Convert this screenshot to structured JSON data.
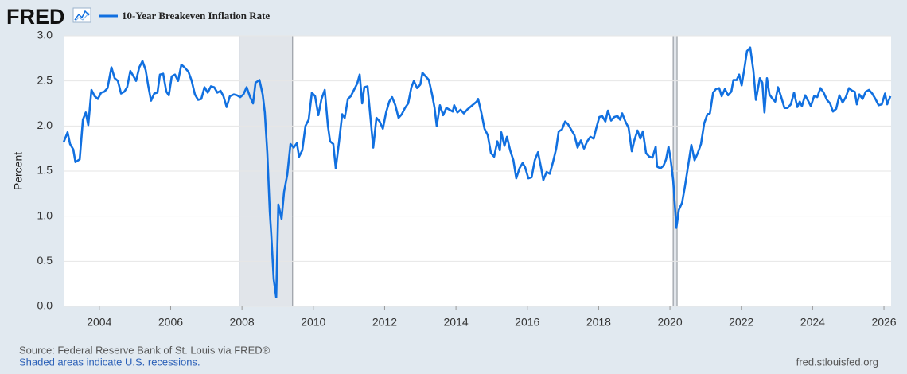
{
  "logo": "FRED",
  "site": "fred.stlouisfed.org",
  "chart_data": {
    "type": "line",
    "y_label": "Percent",
    "source": "Source: Federal Reserve Bank of St. Louis via FRED®",
    "note": "Shaded areas indicate U.S. recessions.",
    "xlim": [
      2003,
      2026.2
    ],
    "xticks": [
      2004,
      2006,
      2008,
      2010,
      2012,
      2014,
      2016,
      2018,
      2020,
      2022,
      2024,
      2026
    ],
    "ylim": [
      0,
      3
    ],
    "yticks": [
      {
        "value": 0,
        "label": "0.0"
      },
      0.5,
      {
        "value": 1,
        "label": "1.0"
      },
      1.5,
      {
        "value": 2,
        "label": "2.0"
      },
      2.5,
      {
        "value": 3,
        "label": "3.0"
      }
    ],
    "grid": true,
    "recessions": [
      [
        2007.92,
        2009.42
      ],
      [
        2020.09,
        2020.2
      ]
    ],
    "x": [
      2003.0,
      2003.11,
      2003.18,
      2003.27,
      2003.33,
      2003.45,
      2003.54,
      2003.62,
      2003.69,
      2003.78,
      2003.87,
      2003.96,
      2004.05,
      2004.14,
      2004.23,
      2004.34,
      2004.43,
      2004.52,
      2004.61,
      2004.7,
      2004.78,
      2004.87,
      2004.96,
      2005.03,
      2005.12,
      2005.21,
      2005.3,
      2005.37,
      2005.45,
      2005.54,
      2005.63,
      2005.7,
      2005.79,
      2005.88,
      2005.95,
      2006.03,
      2006.12,
      2006.21,
      2006.3,
      2006.39,
      2006.5,
      2006.59,
      2006.68,
      2006.77,
      2006.86,
      2006.95,
      2007.04,
      2007.13,
      2007.22,
      2007.31,
      2007.4,
      2007.48,
      2007.57,
      2007.66,
      2007.77,
      2007.86,
      2007.95,
      2008.04,
      2008.13,
      2008.22,
      2008.31,
      2008.38,
      2008.49,
      2008.58,
      2008.64,
      2008.71,
      2008.78,
      2008.82,
      2008.89,
      2008.96,
      2009.02,
      2009.11,
      2009.18,
      2009.27,
      2009.36,
      2009.45,
      2009.54,
      2009.6,
      2009.69,
      2009.78,
      2009.87,
      2009.96,
      2010.05,
      2010.14,
      2010.23,
      2010.32,
      2010.41,
      2010.47,
      2010.56,
      2010.63,
      2010.72,
      2010.81,
      2010.88,
      2010.97,
      2011.05,
      2011.14,
      2011.23,
      2011.3,
      2011.37,
      2011.43,
      2011.52,
      2011.61,
      2011.68,
      2011.77,
      2011.86,
      2011.95,
      2012.04,
      2012.13,
      2012.21,
      2012.3,
      2012.39,
      2012.48,
      2012.57,
      2012.66,
      2012.75,
      2012.82,
      2012.91,
      2013.0,
      2013.06,
      2013.15,
      2013.24,
      2013.33,
      2013.4,
      2013.46,
      2013.55,
      2013.64,
      2013.73,
      2013.82,
      2013.91,
      2013.95,
      2014.04,
      2014.13,
      2014.22,
      2014.31,
      2014.4,
      2014.49,
      2014.58,
      2014.62,
      2014.71,
      2014.8,
      2014.89,
      2014.98,
      2015.07,
      2015.16,
      2015.23,
      2015.27,
      2015.36,
      2015.43,
      2015.52,
      2015.61,
      2015.69,
      2015.78,
      2015.87,
      2015.94,
      2016.03,
      2016.12,
      2016.21,
      2016.3,
      2016.39,
      2016.45,
      2016.54,
      2016.63,
      2016.72,
      2016.81,
      2016.88,
      2016.97,
      2017.06,
      2017.14,
      2017.23,
      2017.32,
      2017.41,
      2017.5,
      2017.59,
      2017.68,
      2017.77,
      2017.86,
      2017.93,
      2018.02,
      2018.1,
      2018.19,
      2018.26,
      2018.35,
      2018.44,
      2018.53,
      2018.6,
      2018.66,
      2018.75,
      2018.84,
      2018.93,
      2019.0,
      2019.09,
      2019.17,
      2019.24,
      2019.33,
      2019.42,
      2019.51,
      2019.6,
      2019.64,
      2019.73,
      2019.82,
      2019.89,
      2019.96,
      2020.02,
      2020.09,
      2020.18,
      2020.25,
      2020.34,
      2020.42,
      2020.51,
      2020.6,
      2020.69,
      2020.78,
      2020.87,
      2020.96,
      2021.05,
      2021.12,
      2021.21,
      2021.29,
      2021.38,
      2021.45,
      2021.54,
      2021.63,
      2021.72,
      2021.78,
      2021.87,
      2021.94,
      2022.01,
      2022.08,
      2022.16,
      2022.25,
      2022.34,
      2022.41,
      2022.52,
      2022.59,
      2022.65,
      2022.72,
      2022.79,
      2022.86,
      2022.95,
      2023.03,
      2023.12,
      2023.21,
      2023.3,
      2023.39,
      2023.48,
      2023.57,
      2023.64,
      2023.7,
      2023.79,
      2023.86,
      2023.95,
      2024.04,
      2024.13,
      2024.22,
      2024.31,
      2024.4,
      2024.49,
      2024.57,
      2024.66,
      2024.75,
      2024.84,
      2024.93,
      2025.02,
      2025.11,
      2025.18,
      2025.24,
      2025.31,
      2025.4,
      2025.49,
      2025.58,
      2025.67,
      2025.76,
      2025.85,
      2025.94,
      2026.03,
      2026.09,
      2026.18
    ],
    "series": [
      {
        "name": "10-Year Breakeven Inflation Rate",
        "color": "#1170e0",
        "values": [
          1.82,
          1.93,
          1.8,
          1.74,
          1.6,
          1.63,
          2.07,
          2.15,
          2.01,
          2.4,
          2.33,
          2.3,
          2.37,
          2.38,
          2.42,
          2.65,
          2.53,
          2.5,
          2.36,
          2.38,
          2.43,
          2.61,
          2.55,
          2.5,
          2.65,
          2.72,
          2.62,
          2.45,
          2.28,
          2.36,
          2.37,
          2.57,
          2.58,
          2.38,
          2.34,
          2.55,
          2.57,
          2.5,
          2.68,
          2.65,
          2.6,
          2.5,
          2.35,
          2.29,
          2.3,
          2.43,
          2.37,
          2.44,
          2.43,
          2.37,
          2.39,
          2.33,
          2.21,
          2.33,
          2.35,
          2.34,
          2.32,
          2.35,
          2.43,
          2.33,
          2.25,
          2.48,
          2.51,
          2.35,
          2.15,
          1.7,
          1.05,
          0.8,
          0.3,
          0.1,
          1.13,
          0.97,
          1.27,
          1.46,
          1.8,
          1.76,
          1.81,
          1.66,
          1.73,
          2.0,
          2.07,
          2.37,
          2.33,
          2.12,
          2.3,
          2.4,
          2.0,
          1.83,
          1.8,
          1.53,
          1.82,
          2.13,
          2.09,
          2.3,
          2.33,
          2.4,
          2.47,
          2.57,
          2.25,
          2.43,
          2.44,
          2.06,
          1.76,
          2.09,
          2.05,
          1.97,
          2.15,
          2.27,
          2.32,
          2.23,
          2.09,
          2.13,
          2.2,
          2.25,
          2.43,
          2.5,
          2.42,
          2.46,
          2.59,
          2.55,
          2.51,
          2.35,
          2.2,
          2.0,
          2.23,
          2.12,
          2.2,
          2.18,
          2.16,
          2.23,
          2.15,
          2.18,
          2.14,
          2.18,
          2.21,
          2.24,
          2.27,
          2.3,
          2.15,
          1.97,
          1.9,
          1.7,
          1.66,
          1.83,
          1.73,
          1.93,
          1.78,
          1.88,
          1.73,
          1.62,
          1.42,
          1.53,
          1.59,
          1.54,
          1.42,
          1.43,
          1.62,
          1.71,
          1.53,
          1.4,
          1.49,
          1.47,
          1.6,
          1.75,
          1.94,
          1.96,
          2.05,
          2.02,
          1.96,
          1.9,
          1.76,
          1.84,
          1.75,
          1.83,
          1.88,
          1.86,
          1.97,
          2.1,
          2.11,
          2.05,
          2.17,
          2.06,
          2.1,
          2.11,
          2.07,
          2.14,
          2.05,
          1.98,
          1.72,
          1.84,
          1.95,
          1.86,
          1.94,
          1.7,
          1.66,
          1.65,
          1.77,
          1.55,
          1.53,
          1.56,
          1.63,
          1.77,
          1.63,
          1.4,
          0.87,
          1.07,
          1.15,
          1.33,
          1.56,
          1.79,
          1.62,
          1.7,
          1.8,
          2.03,
          2.13,
          2.14,
          2.37,
          2.41,
          2.42,
          2.33,
          2.41,
          2.34,
          2.38,
          2.51,
          2.51,
          2.57,
          2.45,
          2.62,
          2.83,
          2.87,
          2.61,
          2.29,
          2.53,
          2.48,
          2.15,
          2.53,
          2.35,
          2.31,
          2.27,
          2.43,
          2.32,
          2.2,
          2.2,
          2.24,
          2.37,
          2.21,
          2.27,
          2.22,
          2.34,
          2.29,
          2.22,
          2.33,
          2.32,
          2.42,
          2.37,
          2.29,
          2.25,
          2.16,
          2.19,
          2.34,
          2.26,
          2.32,
          2.42,
          2.39,
          2.38,
          2.24,
          2.35,
          2.3,
          2.38,
          2.4,
          2.36,
          2.3,
          2.23,
          2.24,
          2.36,
          2.24,
          2.33
        ]
      }
    ]
  }
}
